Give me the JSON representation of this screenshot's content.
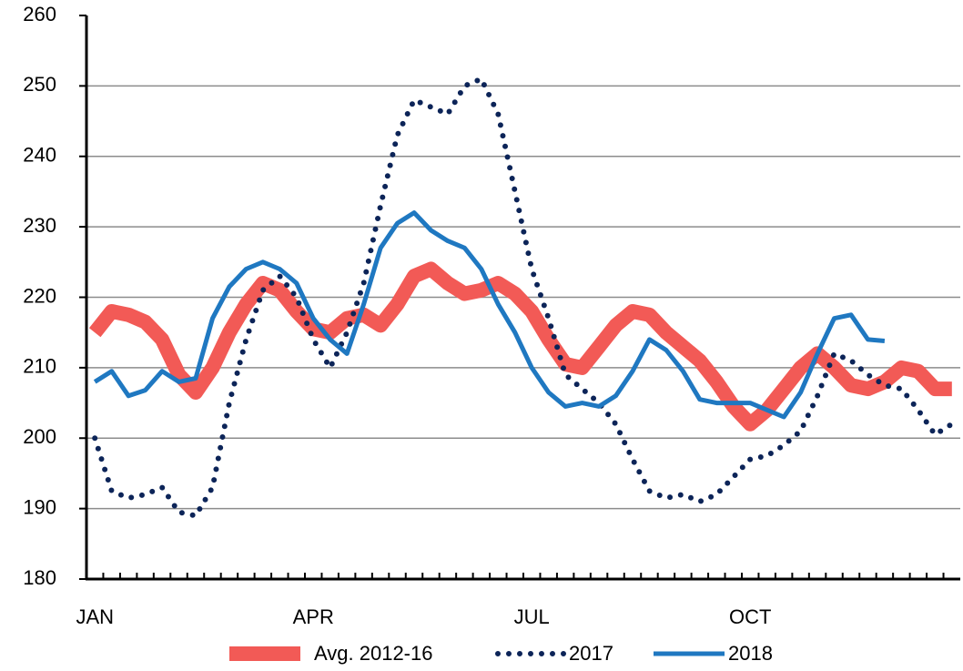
{
  "chart_data": {
    "type": "line",
    "categories": [
      "JAN",
      null,
      null,
      null,
      null,
      null,
      null,
      null,
      null,
      null,
      null,
      null,
      null,
      "APR",
      null,
      null,
      null,
      null,
      null,
      null,
      null,
      null,
      null,
      null,
      null,
      null,
      "JUL",
      null,
      null,
      null,
      null,
      null,
      null,
      null,
      null,
      null,
      null,
      null,
      null,
      "OCT",
      null,
      null,
      null,
      null,
      null,
      null,
      null,
      null,
      null,
      null,
      null,
      null
    ],
    "ylim": [
      180,
      260
    ],
    "yticks": [
      180,
      190,
      200,
      210,
      220,
      230,
      240,
      250,
      260
    ],
    "grid": true,
    "legend": "bottom",
    "series": [
      {
        "name": "Avg. 2012-16",
        "color": "#f25a56",
        "style": "thick",
        "values": [
          215,
          218,
          217.5,
          216.5,
          214,
          209,
          206.5,
          210,
          215,
          219,
          222,
          221,
          218,
          215.5,
          215,
          217,
          217.5,
          216,
          219,
          223,
          224,
          222,
          220.5,
          221,
          222,
          220.5,
          218,
          214,
          210.5,
          210,
          213,
          216,
          218,
          217.5,
          215,
          213,
          211,
          208,
          204.5,
          202,
          204,
          207,
          210,
          212,
          210,
          207.5,
          207,
          208,
          210,
          209.5,
          207,
          207
        ]
      },
      {
        "name": "2017",
        "color": "#0c2458",
        "style": "dotted",
        "values": [
          200,
          192.5,
          191.5,
          192,
          193,
          189.5,
          189,
          193,
          205,
          214,
          221,
          223,
          220,
          214,
          210,
          215,
          222,
          233,
          243,
          248,
          247,
          246,
          250,
          251,
          246,
          235,
          224,
          217,
          209,
          207,
          205,
          202,
          197,
          192.5,
          191.5,
          192,
          191,
          192,
          194.5,
          197,
          197.5,
          199,
          201,
          206,
          212,
          211,
          209,
          207.5,
          207,
          204,
          200.5,
          202
        ]
      },
      {
        "name": "2018",
        "color": "#1f78c1",
        "style": "solid",
        "values": [
          208,
          209.5,
          206,
          206.8,
          209.5,
          208,
          208.5,
          217,
          221.5,
          224,
          225,
          224,
          222,
          217,
          214,
          212,
          219,
          227,
          230.5,
          232,
          229.5,
          228,
          227,
          224,
          219,
          215,
          210,
          206.5,
          204.5,
          205,
          204.5,
          206,
          209.5,
          214,
          212.5,
          209.5,
          205.5,
          205,
          205,
          205,
          204,
          203,
          206.5,
          212,
          217,
          217.5,
          214,
          213.8,
          null,
          null,
          null,
          null
        ]
      }
    ]
  }
}
